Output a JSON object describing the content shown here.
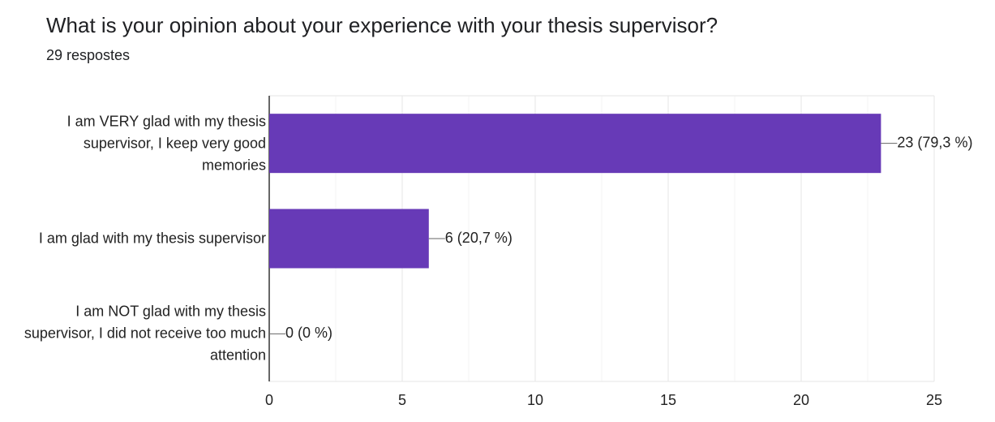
{
  "chart_data": {
    "type": "bar",
    "orientation": "horizontal",
    "title": "What is your opinion about your experience with your thesis supervisor?",
    "subtitle": "29 respostes",
    "categories": [
      "I am VERY glad with my thesis supervisor, I keep very good memories",
      "I am glad with my thesis supervisor",
      "I am NOT glad with my thesis supervisor, I did not receive too much attention"
    ],
    "values": [
      23,
      6,
      0
    ],
    "value_labels": [
      "23 (79,3 %)",
      "6 (20,7 %)",
      "0 (0 %)"
    ],
    "color": "#673ab7",
    "xlim": [
      0,
      25
    ],
    "xticks": [
      0,
      5,
      10,
      15,
      20,
      25
    ],
    "grid": true
  }
}
